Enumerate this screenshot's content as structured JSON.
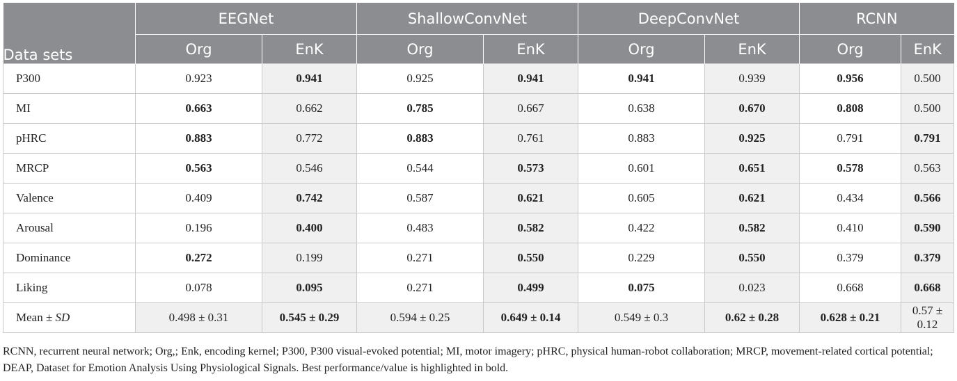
{
  "table": {
    "dataset_header": "Data sets",
    "models": [
      "EEGNet",
      "ShallowConvNet",
      "DeepConvNet",
      "RCNN"
    ],
    "sub_headers": [
      "Org",
      "EnK",
      "Org",
      "EnK",
      "Org",
      "EnK",
      "Org",
      "EnK"
    ],
    "rows": [
      {
        "label": "P300",
        "values": [
          "0.923",
          "0.941",
          "0.925",
          "0.941",
          "0.941",
          "0.939",
          "0.956",
          "0.500"
        ],
        "bold": [
          1,
          3,
          4,
          6
        ]
      },
      {
        "label": "MI",
        "values": [
          "0.663",
          "0.662",
          "0.785",
          "0.667",
          "0.638",
          "0.670",
          "0.808",
          "0.500"
        ],
        "bold": [
          0,
          2,
          5,
          6
        ]
      },
      {
        "label": "pHRC",
        "values": [
          "0.883",
          "0.772",
          "0.883",
          "0.761",
          "0.883",
          "0.925",
          "0.791",
          "0.791"
        ],
        "bold": [
          0,
          2,
          5,
          7
        ]
      },
      {
        "label": "MRCP",
        "values": [
          "0.563",
          "0.546",
          "0.544",
          "0.573",
          "0.601",
          "0.651",
          "0.578",
          "0.563"
        ],
        "bold": [
          0,
          3,
          5,
          6
        ]
      },
      {
        "label": "Valence",
        "values": [
          "0.409",
          "0.742",
          "0.587",
          "0.621",
          "0.605",
          "0.621",
          "0.434",
          "0.566"
        ],
        "bold": [
          1,
          3,
          5,
          7
        ]
      },
      {
        "label": "Arousal",
        "values": [
          "0.196",
          "0.400",
          "0.483",
          "0.582",
          "0.422",
          "0.582",
          "0.410",
          "0.590"
        ],
        "bold": [
          1,
          3,
          5,
          7
        ]
      },
      {
        "label": "Dominance",
        "values": [
          "0.272",
          "0.199",
          "0.271",
          "0.550",
          "0.229",
          "0.550",
          "0.379",
          "0.379"
        ],
        "bold": [
          0,
          3,
          5,
          7
        ]
      },
      {
        "label": "Liking",
        "values": [
          "0.078",
          "0.095",
          "0.271",
          "0.499",
          "0.075",
          "0.023",
          "0.668",
          "0.668"
        ],
        "bold": [
          1,
          3,
          4,
          7
        ]
      }
    ],
    "mean_row": {
      "label_prefix": "Mean ± ",
      "label_sd": "SD",
      "values": [
        "0.498 ± 0.31",
        "0.545 ± 0.29",
        "0.594 ± 0.25",
        "0.649 ± 0.14",
        "0.549 ± 0.3",
        "0.62 ± 0.28",
        "0.628 ± 0.21",
        "0.57 ± 0.12"
      ],
      "bold": [
        1,
        3,
        5,
        6
      ]
    }
  },
  "footnote": "RCNN, recurrent neural network; Org,; Enk, encoding kernel; P300, P300 visual-evoked potential; MI, motor imagery; pHRC, physical human-robot collaboration; MRCP, movement-related cortical potential; DEAP, Dataset for Emotion Analysis Using Physiological Signals. Best performance/value is highlighted in bold.",
  "colors": {
    "header_bg": "#8c8d91",
    "header_text": "#ffffff",
    "alt_cell_bg": "#f0f0f0",
    "border": "#c9c9c9"
  }
}
